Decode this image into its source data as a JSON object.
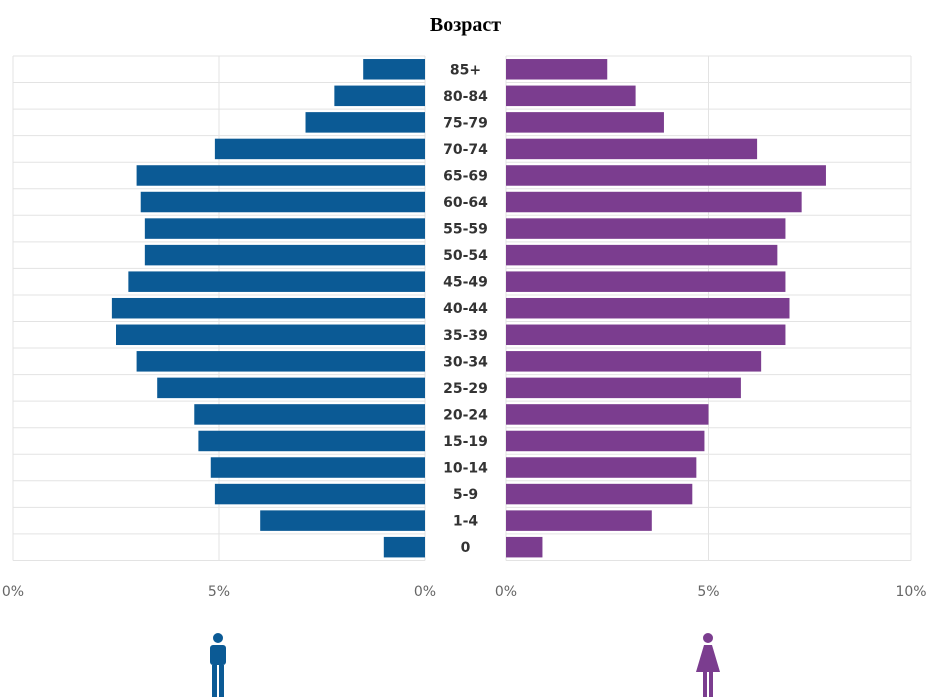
{
  "chart_data": {
    "type": "bar",
    "title": "Возраст",
    "categories": [
      "85+",
      "80-84",
      "75-79",
      "70-74",
      "65-69",
      "60-64",
      "55-59",
      "50-54",
      "45-49",
      "40-44",
      "35-39",
      "30-34",
      "25-29",
      "20-24",
      "15-19",
      "10-14",
      "5-9",
      "1-4",
      "0"
    ],
    "series": [
      {
        "values": [
          1.5,
          2.2,
          2.9,
          5.1,
          7.0,
          6.9,
          6.8,
          6.8,
          7.2,
          7.6,
          7.5,
          7.0,
          6.5,
          5.6,
          5.5,
          5.2,
          5.1,
          4.0,
          1.0
        ],
        "color": "#0b5a95"
      },
      {
        "values": [
          2.5,
          3.2,
          3.9,
          6.2,
          7.9,
          7.3,
          6.9,
          6.7,
          6.9,
          7.0,
          6.9,
          6.3,
          5.8,
          5.0,
          4.9,
          4.7,
          4.6,
          3.6,
          0.9
        ],
        "color": "#7b3d8f"
      }
    ],
    "left_axis": {
      "ticks": [
        "0%",
        "5%",
        "0%"
      ],
      "xlim": [
        0,
        10
      ]
    },
    "right_axis": {
      "ticks": [
        "0%",
        "5%",
        "10%"
      ],
      "xlim": [
        0,
        10
      ]
    },
    "grid": true
  },
  "icons": {
    "male": {
      "name": "male-person-icon",
      "color": "#0b5a95"
    },
    "female": {
      "name": "female-person-icon",
      "color": "#7b3d8f"
    }
  }
}
